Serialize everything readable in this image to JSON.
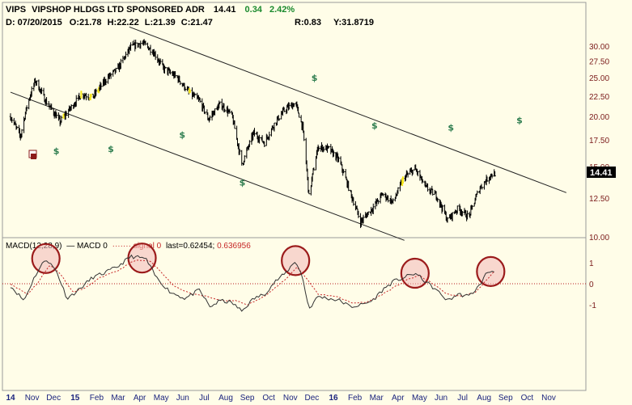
{
  "header": {
    "ticker": "VIPS",
    "company": "VIPSHOP HLDGS LTD SPONSORED ADR",
    "last": "14.41",
    "change": "0.34",
    "change_pct": "2.42%",
    "date_line": "D: 07/20/2015",
    "open": "O:21.78",
    "high": "H:22.22",
    "low": "L:21.39",
    "close": "C:21.47",
    "r_value": "R:0.83",
    "y_value": "Y:31.8719"
  },
  "macd_legend": {
    "macd_label": "MACD(12,28,9)",
    "macd0": "MACD 0",
    "signal": "signal 0",
    "last": "last=0.62454;",
    "last_value": "0.636956"
  },
  "colors": {
    "background": "#fffde8",
    "price_bar": "#000000",
    "highlight_bar": "#f5e61a",
    "dollar": "#2e7d4f",
    "axis_text": "#7a1a1a",
    "date_text": "#1a237e",
    "circle_stroke": "#9b1b1b",
    "circle_fill": "#f2b8b8",
    "signal_line": "#c62828",
    "last_box": "#000000"
  },
  "chart_data": [
    {
      "type": "ohlc",
      "title": "VIPS VIPSHOP HLDGS LTD SPONSORED ADR",
      "last_label": "14.41",
      "ylim": [
        9,
        35
      ],
      "y_ticks": [
        "30.00",
        "27.50",
        "25.00",
        "22.50",
        "20.00",
        "17.50",
        "15.00",
        "12.50",
        "10.00"
      ],
      "y_scale": "log",
      "x_ticks": [
        "14",
        "Nov",
        "Dec",
        "15",
        "Feb",
        "Mar",
        "Apr",
        "May",
        "Jun",
        "Jul",
        "Aug",
        "Sep",
        "Oct",
        "Nov",
        "Dec",
        "16",
        "Feb",
        "Mar",
        "Apr",
        "May",
        "Jun",
        "Jul",
        "Aug",
        "Sep",
        "Oct",
        "Nov"
      ],
      "year_ticks": [
        "14",
        "15",
        "16"
      ],
      "close_path": [
        [
          "2014-10-01",
          20.0
        ],
        [
          "2014-10-15",
          17.8
        ],
        [
          "2014-10-25",
          21.5
        ],
        [
          "2014-11-05",
          24.6
        ],
        [
          "2014-11-20",
          21.8
        ],
        [
          "2014-12-10",
          19.4
        ],
        [
          "2014-12-25",
          21.0
        ],
        [
          "2015-01-10",
          22.8
        ],
        [
          "2015-01-25",
          22.3
        ],
        [
          "2015-02-15",
          25.0
        ],
        [
          "2015-03-01",
          26.2
        ],
        [
          "2015-03-20",
          29.8
        ],
        [
          "2015-04-05",
          30.6
        ],
        [
          "2015-04-20",
          29.2
        ],
        [
          "2015-05-05",
          26.4
        ],
        [
          "2015-05-25",
          25.0
        ],
        [
          "2015-06-10",
          23.0
        ],
        [
          "2015-06-25",
          21.9
        ],
        [
          "2015-07-08",
          19.7
        ],
        [
          "2015-07-25",
          21.5
        ],
        [
          "2015-08-10",
          20.1
        ],
        [
          "2015-08-24",
          15.1
        ],
        [
          "2015-09-10",
          18.2
        ],
        [
          "2015-09-25",
          17.2
        ],
        [
          "2015-10-10",
          19.3
        ],
        [
          "2015-10-25",
          20.9
        ],
        [
          "2015-11-08",
          21.6
        ],
        [
          "2015-11-18",
          18.8
        ],
        [
          "2015-11-27",
          12.6
        ],
        [
          "2015-12-10",
          16.8
        ],
        [
          "2015-12-25",
          16.6
        ],
        [
          "2016-01-08",
          15.6
        ],
        [
          "2016-01-25",
          12.8
        ],
        [
          "2016-02-08",
          10.9
        ],
        [
          "2016-02-25",
          11.8
        ],
        [
          "2016-03-10",
          12.8
        ],
        [
          "2016-03-25",
          12.2
        ],
        [
          "2016-04-10",
          14.1
        ],
        [
          "2016-04-25",
          14.8
        ],
        [
          "2016-05-10",
          13.3
        ],
        [
          "2016-05-25",
          12.7
        ],
        [
          "2016-06-10",
          11.0
        ],
        [
          "2016-06-25",
          11.8
        ],
        [
          "2016-07-10",
          11.2
        ],
        [
          "2016-07-25",
          13.2
        ],
        [
          "2016-08-10",
          14.3
        ],
        [
          "2016-08-16",
          14.41
        ]
      ],
      "yellow_dates": [
        "2014-12-15",
        "2015-01-10",
        "2015-01-22",
        "2015-02-02",
        "2015-06-12",
        "2016-04-08"
      ],
      "dollar_markers": [
        [
          "2014-12-05",
          16.4
        ],
        [
          "2015-02-20",
          16.6
        ],
        [
          "2015-06-01",
          18.0
        ],
        [
          "2015-08-25",
          13.7
        ],
        [
          "2015-12-05",
          25.0
        ],
        [
          "2016-02-28",
          19.0
        ],
        [
          "2016-06-15",
          18.8
        ],
        [
          "2016-09-20",
          19.6
        ]
      ],
      "trendlines": [
        {
          "name": "upper",
          "from": [
            "2015-03-18",
            33.5
          ],
          "to": [
            "2016-11-25",
            12.9
          ]
        },
        {
          "name": "lower",
          "from": [
            "2014-10-01",
            23.0
          ],
          "to": [
            "2016-04-10",
            9.8
          ]
        }
      ]
    },
    {
      "type": "line",
      "title": "MACD(12,28,9)",
      "ylim": [
        -3,
        3
      ],
      "y_ticks": [
        "1",
        "0",
        "-1"
      ],
      "series": [
        {
          "name": "MACD",
          "values": [
            [
              "2014-10-01",
              -0.1
            ],
            [
              "2014-10-20",
              -0.8
            ],
            [
              "2014-11-05",
              0.4
            ],
            [
              "2014-11-20",
              1.2
            ],
            [
              "2014-12-05",
              0.6
            ],
            [
              "2014-12-20",
              -0.7
            ],
            [
              "2015-01-05",
              -0.3
            ],
            [
              "2015-01-25",
              0.3
            ],
            [
              "2015-02-10",
              0.5
            ],
            [
              "2015-03-01",
              0.8
            ],
            [
              "2015-03-20",
              1.3
            ],
            [
              "2015-04-10",
              1.2
            ],
            [
              "2015-04-25",
              0.3
            ],
            [
              "2015-05-15",
              -0.4
            ],
            [
              "2015-06-05",
              -0.7
            ],
            [
              "2015-06-25",
              -0.3
            ],
            [
              "2015-07-10",
              -1.1
            ],
            [
              "2015-07-25",
              -0.8
            ],
            [
              "2015-08-10",
              -0.9
            ],
            [
              "2015-08-24",
              -1.3
            ],
            [
              "2015-09-10",
              -0.7
            ],
            [
              "2015-09-25",
              -0.5
            ],
            [
              "2015-10-10",
              0.1
            ],
            [
              "2015-10-25",
              0.5
            ],
            [
              "2015-11-08",
              1.1
            ],
            [
              "2015-11-18",
              0.3
            ],
            [
              "2015-11-27",
              -1.2
            ],
            [
              "2015-12-10",
              -0.6
            ],
            [
              "2015-12-25",
              -0.7
            ],
            [
              "2016-01-10",
              -0.8
            ],
            [
              "2016-01-25",
              -1.1
            ],
            [
              "2016-02-10",
              -1.0
            ],
            [
              "2016-02-25",
              -0.8
            ],
            [
              "2016-03-10",
              -0.3
            ],
            [
              "2016-03-25",
              0.1
            ],
            [
              "2016-04-10",
              0.3
            ],
            [
              "2016-04-25",
              0.5
            ],
            [
              "2016-05-10",
              0.1
            ],
            [
              "2016-05-25",
              -0.3
            ],
            [
              "2016-06-10",
              -0.8
            ],
            [
              "2016-06-25",
              -0.5
            ],
            [
              "2016-07-10",
              -0.6
            ],
            [
              "2016-07-25",
              -0.1
            ],
            [
              "2016-08-05",
              0.55
            ],
            [
              "2016-08-16",
              0.62
            ]
          ]
        },
        {
          "name": "signal",
          "values": [
            [
              "2014-10-01",
              0.0
            ],
            [
              "2014-10-25",
              -0.5
            ],
            [
              "2014-11-10",
              0.1
            ],
            [
              "2014-11-25",
              0.9
            ],
            [
              "2014-12-10",
              0.5
            ],
            [
              "2014-12-28",
              -0.4
            ],
            [
              "2015-01-15",
              -0.2
            ],
            [
              "2015-02-05",
              0.3
            ],
            [
              "2015-03-01",
              0.6
            ],
            [
              "2015-03-25",
              1.1
            ],
            [
              "2015-04-15",
              1.1
            ],
            [
              "2015-05-01",
              0.6
            ],
            [
              "2015-05-20",
              -0.1
            ],
            [
              "2015-06-15",
              -0.5
            ],
            [
              "2015-07-05",
              -0.6
            ],
            [
              "2015-07-25",
              -0.8
            ],
            [
              "2015-08-15",
              -0.8
            ],
            [
              "2015-09-01",
              -1.0
            ],
            [
              "2015-09-20",
              -0.7
            ],
            [
              "2015-10-10",
              -0.2
            ],
            [
              "2015-10-25",
              0.2
            ],
            [
              "2015-11-10",
              0.8
            ],
            [
              "2015-11-25",
              0.2
            ],
            [
              "2015-12-10",
              -0.5
            ],
            [
              "2016-01-05",
              -0.6
            ],
            [
              "2016-01-25",
              -0.9
            ],
            [
              "2016-02-15",
              -0.9
            ],
            [
              "2016-03-05",
              -0.6
            ],
            [
              "2016-03-25",
              -0.2
            ],
            [
              "2016-04-15",
              0.2
            ],
            [
              "2016-05-01",
              0.4
            ],
            [
              "2016-05-20",
              0.0
            ],
            [
              "2016-06-10",
              -0.5
            ],
            [
              "2016-06-30",
              -0.6
            ],
            [
              "2016-07-20",
              -0.4
            ],
            [
              "2016-08-05",
              0.2
            ],
            [
              "2016-08-16",
              0.64
            ]
          ]
        }
      ],
      "highlight_dates": [
        "2014-11-20",
        "2015-04-05",
        "2015-11-08",
        "2016-04-25",
        "2016-08-10"
      ]
    }
  ]
}
